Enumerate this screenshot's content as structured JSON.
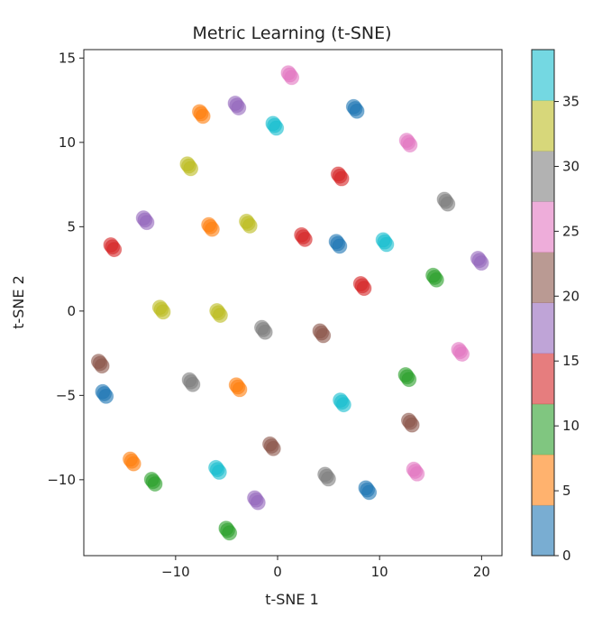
{
  "chart_data": {
    "type": "scatter",
    "title": "Metric Learning (t-SNE)",
    "xlabel": "t-SNE 1",
    "ylabel": "t-SNE 2",
    "xlim": [
      -19,
      22
    ],
    "ylim": [
      -14.5,
      15.5
    ],
    "x_ticks": [
      -10,
      0,
      10,
      20
    ],
    "y_ticks": [
      -10,
      -5,
      0,
      5,
      10,
      15
    ],
    "x_tick_labels": [
      "−10",
      "0",
      "10",
      "20"
    ],
    "y_tick_labels": [
      "−10",
      "−5",
      "0",
      "5",
      "10",
      "15"
    ],
    "grid": false,
    "colormap": "tab10",
    "colormap_colors": [
      "#1f77b4",
      "#ff7f0e",
      "#2ca02c",
      "#d62728",
      "#9467bd",
      "#8c564b",
      "#e377c2",
      "#7f7f7f",
      "#bcbd22",
      "#17becf"
    ],
    "colorbar": {
      "range": [
        0,
        39
      ],
      "ticks": [
        0,
        5,
        10,
        15,
        20,
        25,
        30,
        35
      ],
      "tick_labels": [
        "0",
        "5",
        "10",
        "15",
        "20",
        "25",
        "30",
        "35"
      ],
      "placement": "right"
    },
    "points": [
      {
        "x": 1.2,
        "y": 14.0,
        "label": 26
      },
      {
        "x": -4.0,
        "y": 12.2,
        "label": 18
      },
      {
        "x": -7.5,
        "y": 11.7,
        "label": 6
      },
      {
        "x": 7.6,
        "y": 12.0,
        "label": 1
      },
      {
        "x": -0.3,
        "y": 11.0,
        "label": 38
      },
      {
        "x": 12.8,
        "y": 10.0,
        "label": 27
      },
      {
        "x": -8.7,
        "y": 8.6,
        "label": 33
      },
      {
        "x": 6.1,
        "y": 8.0,
        "label": 13
      },
      {
        "x": 16.5,
        "y": 6.5,
        "label": 31
      },
      {
        "x": -13.0,
        "y": 5.4,
        "label": 17
      },
      {
        "x": -2.9,
        "y": 5.2,
        "label": 34
      },
      {
        "x": -6.6,
        "y": 5.0,
        "label": 7
      },
      {
        "x": 2.5,
        "y": 4.4,
        "label": 14
      },
      {
        "x": 5.9,
        "y": 4.0,
        "label": 2
      },
      {
        "x": 10.5,
        "y": 4.1,
        "label": 37
      },
      {
        "x": -16.2,
        "y": 3.8,
        "label": 12
      },
      {
        "x": 19.8,
        "y": 3.0,
        "label": 18
      },
      {
        "x": 15.4,
        "y": 2.0,
        "label": 9
      },
      {
        "x": 8.3,
        "y": 1.5,
        "label": 13
      },
      {
        "x": -11.4,
        "y": 0.1,
        "label": 32
      },
      {
        "x": -5.8,
        "y": -0.1,
        "label": 33
      },
      {
        "x": -1.4,
        "y": -1.1,
        "label": 30
      },
      {
        "x": 4.3,
        "y": -1.3,
        "label": 22
      },
      {
        "x": 17.9,
        "y": -2.4,
        "label": 27
      },
      {
        "x": -17.4,
        "y": -3.1,
        "label": 22
      },
      {
        "x": 12.7,
        "y": -3.9,
        "label": 9
      },
      {
        "x": -8.5,
        "y": -4.2,
        "label": 31
      },
      {
        "x": -3.9,
        "y": -4.5,
        "label": 7
      },
      {
        "x": -17.0,
        "y": -4.9,
        "label": 1
      },
      {
        "x": 6.3,
        "y": -5.4,
        "label": 37
      },
      {
        "x": 13.0,
        "y": -6.6,
        "label": 22
      },
      {
        "x": -0.6,
        "y": -8.0,
        "label": 21
      },
      {
        "x": -14.3,
        "y": -8.9,
        "label": 6
      },
      {
        "x": 13.5,
        "y": -9.5,
        "label": 27
      },
      {
        "x": -5.9,
        "y": -9.4,
        "label": 38
      },
      {
        "x": 4.8,
        "y": -9.8,
        "label": 31
      },
      {
        "x": -12.2,
        "y": -10.1,
        "label": 9
      },
      {
        "x": 8.8,
        "y": -10.6,
        "label": 2
      },
      {
        "x": -2.1,
        "y": -11.2,
        "label": 17
      },
      {
        "x": -4.9,
        "y": -13.0,
        "label": 10
      }
    ]
  }
}
